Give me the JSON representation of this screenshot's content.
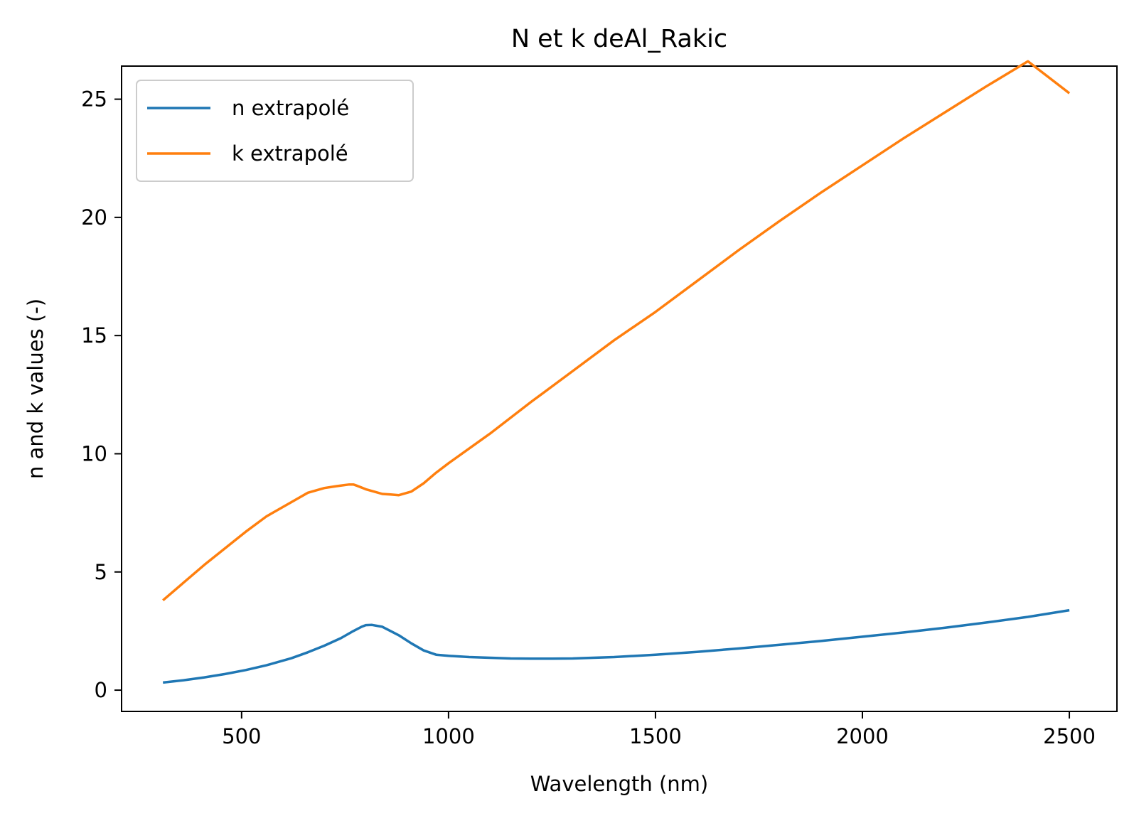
{
  "chart_data": {
    "type": "line",
    "title": "N et k deAl_Rakic",
    "xlabel": "Wavelength (nm)",
    "ylabel": "n and k values (-)",
    "xlim": [
      210,
      2615
    ],
    "ylim": [
      -0.9,
      26.4
    ],
    "xticks": [
      500,
      1000,
      1500,
      2000,
      2500
    ],
    "yticks": [
      0,
      5,
      10,
      15,
      20,
      25
    ],
    "grid": false,
    "legend_position": "upper-left",
    "series": [
      {
        "name": "n extrapolé",
        "color": "#1f77b4",
        "x": [
          310,
          360,
          410,
          460,
          510,
          560,
          620,
          660,
          700,
          740,
          770,
          790,
          800,
          815,
          840,
          880,
          910,
          940,
          970,
          1000,
          1050,
          1100,
          1150,
          1200,
          1250,
          1300,
          1400,
          1500,
          1600,
          1700,
          1800,
          1900,
          2000,
          2100,
          2200,
          2300,
          2400,
          2500
        ],
        "y": [
          0.32,
          0.42,
          0.54,
          0.68,
          0.85,
          1.05,
          1.35,
          1.6,
          1.88,
          2.2,
          2.5,
          2.68,
          2.75,
          2.76,
          2.68,
          2.32,
          1.98,
          1.68,
          1.5,
          1.45,
          1.4,
          1.37,
          1.34,
          1.33,
          1.33,
          1.34,
          1.4,
          1.5,
          1.62,
          1.76,
          1.92,
          2.08,
          2.26,
          2.44,
          2.64,
          2.86,
          3.1,
          3.38
        ]
      },
      {
        "name": "k extrapolé",
        "color": "#ff7f0e",
        "x": [
          310,
          360,
          410,
          460,
          510,
          560,
          620,
          660,
          700,
          730,
          760,
          770,
          780,
          800,
          820,
          840,
          860,
          880,
          910,
          940,
          970,
          1000,
          1100,
          1200,
          1300,
          1400,
          1500,
          1600,
          1700,
          1800,
          1900,
          2000,
          2100,
          2200,
          2300,
          2400,
          2500
        ],
        "y": [
          3.8,
          4.55,
          5.3,
          6.0,
          6.7,
          7.35,
          7.95,
          8.35,
          8.55,
          8.63,
          8.7,
          8.7,
          8.64,
          8.5,
          8.4,
          8.3,
          8.28,
          8.25,
          8.4,
          8.75,
          9.2,
          9.6,
          10.85,
          12.2,
          13.5,
          14.8,
          16.0,
          17.3,
          18.6,
          19.85,
          21.05,
          22.2,
          23.35,
          24.45,
          25.55,
          26.6,
          25.25
        ]
      }
    ]
  }
}
